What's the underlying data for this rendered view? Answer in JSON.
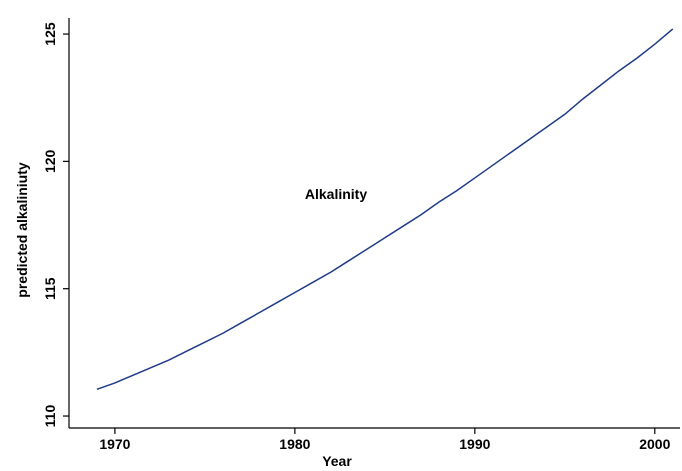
{
  "chart_data": {
    "type": "line",
    "annotation": "Alkalinity",
    "xlabel": "Year",
    "ylabel": "predicted alkaliniuty",
    "x": [
      1969,
      1970,
      1971,
      1972,
      1973,
      1974,
      1975,
      1976,
      1977,
      1978,
      1979,
      1980,
      1981,
      1982,
      1983,
      1984,
      1985,
      1986,
      1987,
      1988,
      1989,
      1990,
      1991,
      1992,
      1993,
      1994,
      1995,
      1996,
      1997,
      1998,
      1999,
      2000,
      2001
    ],
    "series": [
      {
        "color": "#1f3c88",
        "values": [
          111.05,
          111.3,
          111.6,
          111.9,
          112.2,
          112.55,
          112.9,
          113.25,
          113.65,
          114.05,
          114.45,
          114.85,
          115.25,
          115.65,
          116.1,
          116.55,
          117.0,
          117.45,
          117.9,
          118.4,
          118.85,
          119.35,
          119.85,
          120.35,
          120.85,
          121.35,
          121.85,
          122.45,
          123.0,
          123.55,
          124.05,
          124.6,
          125.2
        ]
      }
    ],
    "xlim": [
      1967.45,
      2001.4
    ],
    "xticks": [
      1970,
      1980,
      1990,
      2000
    ],
    "ylim": [
      109.53,
      125.63
    ],
    "yticks": [
      110,
      115,
      120,
      125
    ],
    "grid": false
  }
}
